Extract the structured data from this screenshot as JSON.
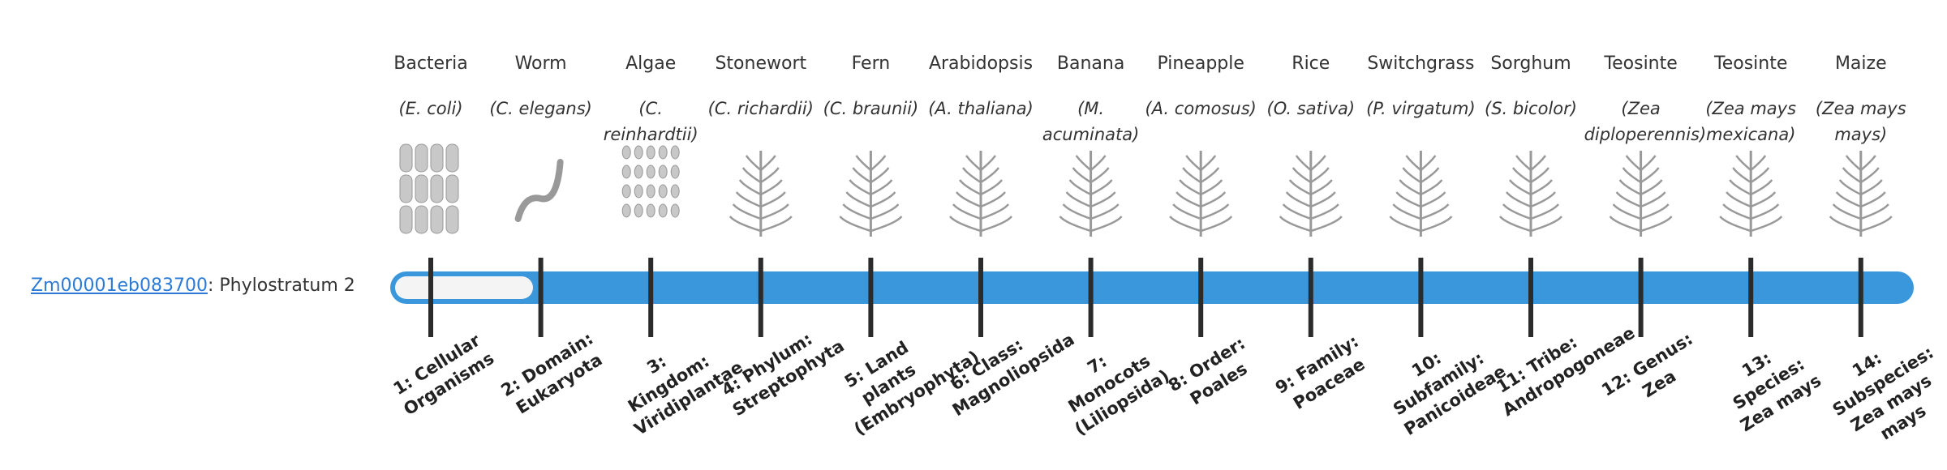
{
  "gene": {
    "id": "Zm00001eb083700",
    "label": ": Phylostratum 2"
  },
  "columns": [
    {
      "name": "Bacteria",
      "species": "(E. coli)",
      "stratum": "1: Cellular Organisms"
    },
    {
      "name": "Worm",
      "species": "(C. elegans)",
      "stratum": "2: Domain: Eukaryota"
    },
    {
      "name": "Algae",
      "species": "(C. reinhardtii)",
      "stratum": "3: Kingdom: Viridiplantae"
    },
    {
      "name": "Stonewort",
      "species": "(C. richardii)",
      "stratum": "4: Phylum: Streptophyta"
    },
    {
      "name": "Fern",
      "species": "(C. braunii)",
      "stratum": "5: Land plants (Embryophyta)"
    },
    {
      "name": "Arabidopsis",
      "species": "(A. thaliana)",
      "stratum": "6: Class: Magnoliopsida"
    },
    {
      "name": "Banana",
      "species": "(M. acuminata)",
      "stratum": "7: Monocots (Liliopsida)"
    },
    {
      "name": "Pineapple",
      "species": "(A. comosus)",
      "stratum": "8: Order: Poales"
    },
    {
      "name": "Rice",
      "species": "(O. sativa)",
      "stratum": "9: Family: Poaceae"
    },
    {
      "name": "Switchgrass",
      "species": "(P. virgatum)",
      "stratum": "10: Subfamily: Panicoideae"
    },
    {
      "name": "Sorghum",
      "species": "(S. bicolor)",
      "stratum": "11: Tribe: Andropogoneae"
    },
    {
      "name": "Teosinte",
      "species": "(Zea diploperennis)",
      "stratum": "12: Genus: Zea"
    },
    {
      "name": "Teosinte",
      "species": "(Zea mays mexicana)",
      "stratum": "13: Species: Zea mays"
    },
    {
      "name": "Maize",
      "species": "(Zea mays mays)",
      "stratum": "14: Subspecies: Zea mays mays"
    }
  ]
}
